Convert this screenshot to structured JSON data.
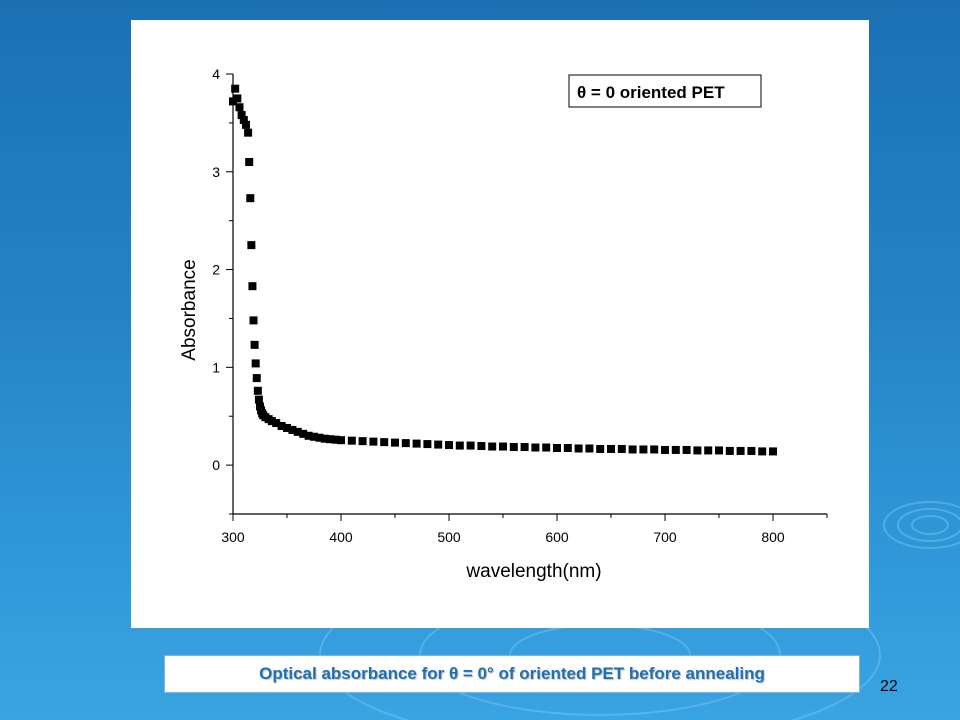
{
  "slide": {
    "caption": "Optical absorbance for θ = 0° of oriented PET before annealing",
    "page_number": "22",
    "background_color": "#2584c6",
    "caption_color": "#1f6fb5",
    "decoration": "ripple-rings"
  },
  "chart_data": {
    "type": "scatter",
    "title": "",
    "xlabel": "wavelength(nm)",
    "ylabel": "Absorbance",
    "xlim": [
      300,
      850
    ],
    "ylim": [
      -0.5,
      4.0
    ],
    "x_ticks": [
      300,
      400,
      500,
      600,
      700,
      800
    ],
    "y_ticks": [
      0,
      1,
      2,
      3,
      4
    ],
    "grid": false,
    "legend": {
      "placement": "top-right",
      "entries": [
        "θ = 0 oriented PET"
      ]
    },
    "marker_color": "#000000",
    "marker": "square",
    "series": [
      {
        "name": "θ = 0 oriented PET",
        "x": [
          300,
          302,
          304,
          306,
          308,
          310,
          312,
          314,
          315,
          316,
          317,
          318,
          319,
          320,
          321,
          322,
          323,
          324,
          325,
          326,
          327,
          328,
          330,
          333,
          336,
          340,
          345,
          350,
          355,
          360,
          365,
          370,
          375,
          380,
          385,
          390,
          395,
          400,
          410,
          420,
          430,
          440,
          450,
          460,
          470,
          480,
          490,
          500,
          510,
          520,
          530,
          540,
          550,
          560,
          570,
          580,
          590,
          600,
          610,
          620,
          630,
          640,
          650,
          660,
          670,
          680,
          690,
          700,
          710,
          720,
          730,
          740,
          750,
          760,
          770,
          780,
          790,
          800
        ],
        "y": [
          3.72,
          3.85,
          3.75,
          3.66,
          3.58,
          3.53,
          3.48,
          3.4,
          3.1,
          2.73,
          2.25,
          1.83,
          1.48,
          1.23,
          1.04,
          0.89,
          0.76,
          0.67,
          0.6,
          0.56,
          0.53,
          0.51,
          0.49,
          0.47,
          0.45,
          0.43,
          0.4,
          0.38,
          0.36,
          0.34,
          0.32,
          0.3,
          0.29,
          0.28,
          0.27,
          0.265,
          0.26,
          0.255,
          0.25,
          0.245,
          0.24,
          0.235,
          0.23,
          0.225,
          0.22,
          0.215,
          0.21,
          0.205,
          0.2,
          0.2,
          0.195,
          0.19,
          0.19,
          0.185,
          0.185,
          0.18,
          0.18,
          0.175,
          0.175,
          0.17,
          0.17,
          0.165,
          0.165,
          0.165,
          0.16,
          0.16,
          0.16,
          0.155,
          0.155,
          0.155,
          0.15,
          0.15,
          0.15,
          0.145,
          0.145,
          0.145,
          0.14,
          0.14
        ]
      }
    ]
  }
}
